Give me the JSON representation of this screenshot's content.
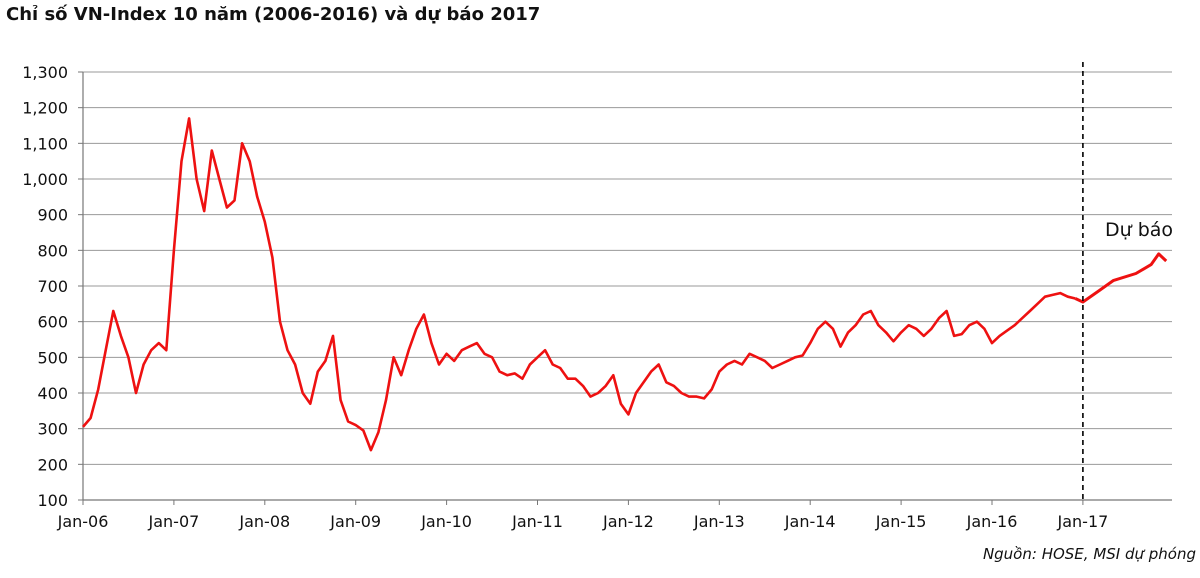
{
  "title": "Chỉ số VN-Index 10 năm (2006-2016) và dự báo 2017",
  "source": "Nguồn: HOSE, MSI dự phóng",
  "colors": {
    "line": "#ee1111",
    "grid": "#9a9a9a",
    "axis": "#777777",
    "divider": "#000000",
    "text": "#111111"
  },
  "chart_data": {
    "type": "line",
    "title": "Chỉ số VN-Index 10 năm (2006-2016) và dự báo 2017",
    "xlabel": "",
    "ylabel": "",
    "ylim": [
      100,
      1300
    ],
    "yticks": [
      "100",
      "200",
      "300",
      "400",
      "500",
      "600",
      "700",
      "800",
      "900",
      "1,000",
      "1,100",
      "1,200",
      "1,300"
    ],
    "xticks": [
      "Jan-06",
      "Jan-07",
      "Jan-08",
      "Jan-09",
      "Jan-10",
      "Jan-11",
      "Jan-12",
      "Jan-13",
      "Jan-14",
      "Jan-15",
      "Jan-16",
      "Jan-17"
    ],
    "grid": true,
    "forecast_divider": "Jan-17",
    "annotation": "Dự báo",
    "series": [
      {
        "values": [
          [
            "2006-01",
            305
          ],
          [
            "2006-02",
            330
          ],
          [
            "2006-03",
            410
          ],
          [
            "2006-04",
            520
          ],
          [
            "2006-05",
            630
          ],
          [
            "2006-06",
            560
          ],
          [
            "2006-07",
            500
          ],
          [
            "2006-08",
            400
          ],
          [
            "2006-09",
            480
          ],
          [
            "2006-10",
            520
          ],
          [
            "2006-11",
            540
          ],
          [
            "2006-12",
            520
          ],
          [
            "2007-01",
            800
          ],
          [
            "2007-02",
            1050
          ],
          [
            "2007-03",
            1170
          ],
          [
            "2007-04",
            1000
          ],
          [
            "2007-05",
            910
          ],
          [
            "2007-06",
            1080
          ],
          [
            "2007-07",
            1000
          ],
          [
            "2007-08",
            920
          ],
          [
            "2007-09",
            940
          ],
          [
            "2007-10",
            1100
          ],
          [
            "2007-11",
            1050
          ],
          [
            "2007-12",
            950
          ],
          [
            "2008-01",
            880
          ],
          [
            "2008-02",
            780
          ],
          [
            "2008-03",
            600
          ],
          [
            "2008-04",
            520
          ],
          [
            "2008-05",
            480
          ],
          [
            "2008-06",
            400
          ],
          [
            "2008-07",
            370
          ],
          [
            "2008-08",
            460
          ],
          [
            "2008-09",
            490
          ],
          [
            "2008-10",
            560
          ],
          [
            "2008-11",
            380
          ],
          [
            "2008-12",
            320
          ],
          [
            "2009-01",
            310
          ],
          [
            "2009-02",
            295
          ],
          [
            "2009-03",
            240
          ],
          [
            "2009-04",
            290
          ],
          [
            "2009-05",
            380
          ],
          [
            "2009-06",
            500
          ],
          [
            "2009-07",
            450
          ],
          [
            "2009-08",
            520
          ],
          [
            "2009-09",
            580
          ],
          [
            "2009-10",
            620
          ],
          [
            "2009-11",
            540
          ],
          [
            "2009-12",
            480
          ],
          [
            "2010-01",
            510
          ],
          [
            "2010-02",
            490
          ],
          [
            "2010-03",
            520
          ],
          [
            "2010-04",
            530
          ],
          [
            "2010-05",
            540
          ],
          [
            "2010-06",
            510
          ],
          [
            "2010-07",
            500
          ],
          [
            "2010-08",
            460
          ],
          [
            "2010-09",
            450
          ],
          [
            "2010-10",
            455
          ],
          [
            "2010-11",
            440
          ],
          [
            "2010-12",
            480
          ],
          [
            "2011-01",
            500
          ],
          [
            "2011-02",
            520
          ],
          [
            "2011-03",
            480
          ],
          [
            "2011-04",
            470
          ],
          [
            "2011-05",
            440
          ],
          [
            "2011-06",
            440
          ],
          [
            "2011-07",
            420
          ],
          [
            "2011-08",
            390
          ],
          [
            "2011-09",
            400
          ],
          [
            "2011-10",
            420
          ],
          [
            "2011-11",
            450
          ],
          [
            "2011-12",
            370
          ],
          [
            "2012-01",
            340
          ],
          [
            "2012-02",
            400
          ],
          [
            "2012-03",
            430
          ],
          [
            "2012-04",
            460
          ],
          [
            "2012-05",
            480
          ],
          [
            "2012-06",
            430
          ],
          [
            "2012-07",
            420
          ],
          [
            "2012-08",
            400
          ],
          [
            "2012-09",
            390
          ],
          [
            "2012-10",
            390
          ],
          [
            "2012-11",
            385
          ],
          [
            "2012-12",
            410
          ],
          [
            "2013-01",
            460
          ],
          [
            "2013-02",
            480
          ],
          [
            "2013-03",
            490
          ],
          [
            "2013-04",
            480
          ],
          [
            "2013-05",
            510
          ],
          [
            "2013-06",
            500
          ],
          [
            "2013-07",
            490
          ],
          [
            "2013-08",
            470
          ],
          [
            "2013-09",
            480
          ],
          [
            "2013-10",
            490
          ],
          [
            "2013-11",
            500
          ],
          [
            "2013-12",
            505
          ],
          [
            "2014-01",
            540
          ],
          [
            "2014-02",
            580
          ],
          [
            "2014-03",
            600
          ],
          [
            "2014-04",
            580
          ],
          [
            "2014-05",
            530
          ],
          [
            "2014-06",
            570
          ],
          [
            "2014-07",
            590
          ],
          [
            "2014-08",
            620
          ],
          [
            "2014-09",
            630
          ],
          [
            "2014-10",
            590
          ],
          [
            "2014-11",
            570
          ],
          [
            "2014-12",
            545
          ],
          [
            "2015-01",
            570
          ],
          [
            "2015-02",
            590
          ],
          [
            "2015-03",
            580
          ],
          [
            "2015-04",
            560
          ],
          [
            "2015-05",
            580
          ],
          [
            "2015-06",
            610
          ],
          [
            "2015-07",
            630
          ],
          [
            "2015-08",
            560
          ],
          [
            "2015-09",
            565
          ],
          [
            "2015-10",
            590
          ],
          [
            "2015-11",
            600
          ],
          [
            "2015-12",
            580
          ],
          [
            "2016-01",
            540
          ],
          [
            "2016-02",
            560
          ],
          [
            "2016-03",
            575
          ],
          [
            "2016-04",
            590
          ],
          [
            "2016-05",
            610
          ],
          [
            "2016-06",
            630
          ],
          [
            "2016-07",
            650
          ],
          [
            "2016-08",
            670
          ],
          [
            "2016-09",
            675
          ],
          [
            "2016-10",
            680
          ],
          [
            "2016-11",
            670
          ],
          [
            "2016-12",
            665
          ]
        ]
      },
      {
        "values": [
          [
            "2016-12",
            665
          ],
          [
            "2017-01",
            655
          ],
          [
            "2017-03",
            685
          ],
          [
            "2017-05",
            715
          ],
          [
            "2017-08",
            735
          ],
          [
            "2017-10",
            760
          ],
          [
            "2017-11",
            790
          ],
          [
            "2017-12",
            770
          ]
        ]
      }
    ]
  }
}
